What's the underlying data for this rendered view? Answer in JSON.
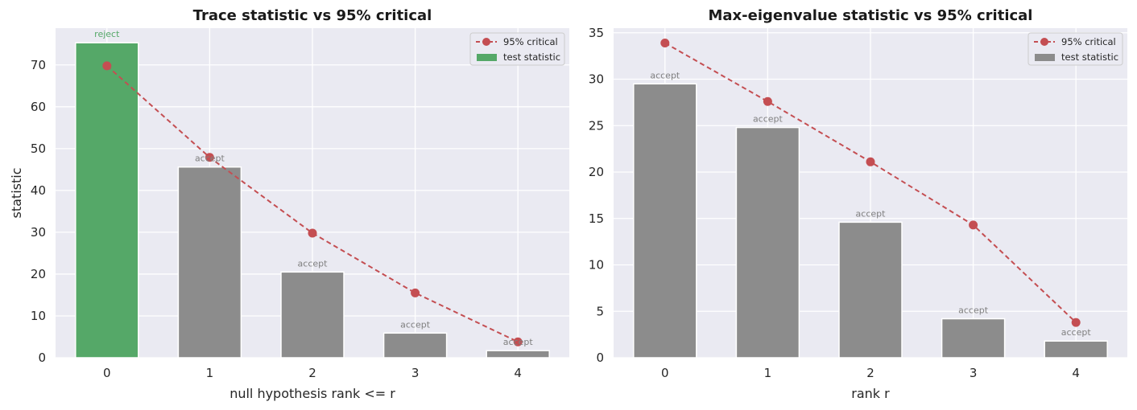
{
  "chart_data": [
    {
      "type": "bar",
      "title": "Trace statistic vs 95% critical",
      "xlabel": "null hypothesis  rank <= r",
      "ylabel": "statistic",
      "categories": [
        "0",
        "1",
        "2",
        "3",
        "4"
      ],
      "ylim": [
        0,
        78.8
      ],
      "yticks": [
        0,
        10,
        20,
        30,
        40,
        50,
        60,
        70
      ],
      "grid": true,
      "legend_position": "top-right",
      "series": [
        {
          "name": "test statistic",
          "kind": "bar",
          "values": [
            75.3,
            45.6,
            20.5,
            5.9,
            1.7
          ]
        },
        {
          "name": "95% critical",
          "kind": "line",
          "values": [
            69.8,
            47.9,
            29.8,
            15.5,
            3.8
          ]
        }
      ],
      "bar_labels": [
        "reject",
        "accept",
        "accept",
        "accept",
        "accept"
      ],
      "bar_colors": [
        "#55a868",
        "#8c8c8c",
        "#8c8c8c",
        "#8c8c8c",
        "#8c8c8c"
      ],
      "label_colors": [
        "#55a868",
        "#808080",
        "#808080",
        "#808080",
        "#808080"
      ],
      "legend": [
        {
          "label": "95% critical",
          "type": "line"
        },
        {
          "label": "test statistic",
          "type": "bar",
          "color": "#55a868"
        }
      ]
    },
    {
      "type": "bar",
      "title": "Max-eigenvalue statistic vs 95% critical",
      "xlabel": "rank r",
      "ylabel": "",
      "categories": [
        "0",
        "1",
        "2",
        "3",
        "4"
      ],
      "ylim": [
        0,
        35.5
      ],
      "yticks": [
        0,
        5,
        10,
        15,
        20,
        25,
        30,
        35
      ],
      "grid": true,
      "legend_position": "top-right",
      "series": [
        {
          "name": "test statistic",
          "kind": "bar",
          "values": [
            29.5,
            24.8,
            14.6,
            4.2,
            1.8
          ]
        },
        {
          "name": "95% critical",
          "kind": "line",
          "values": [
            33.9,
            27.6,
            21.1,
            14.3,
            3.8
          ]
        }
      ],
      "bar_labels": [
        "accept",
        "accept",
        "accept",
        "accept",
        "accept"
      ],
      "bar_colors": [
        "#8c8c8c",
        "#8c8c8c",
        "#8c8c8c",
        "#8c8c8c",
        "#8c8c8c"
      ],
      "label_colors": [
        "#808080",
        "#808080",
        "#808080",
        "#808080",
        "#808080"
      ],
      "legend": [
        {
          "label": "95% critical",
          "type": "line"
        },
        {
          "label": "test statistic",
          "type": "bar",
          "color": "#8c8c8c"
        }
      ]
    }
  ],
  "colors": {
    "panel_bg": "#eaeaf2",
    "grid": "#ffffff",
    "critical_line": "#c44e52"
  }
}
